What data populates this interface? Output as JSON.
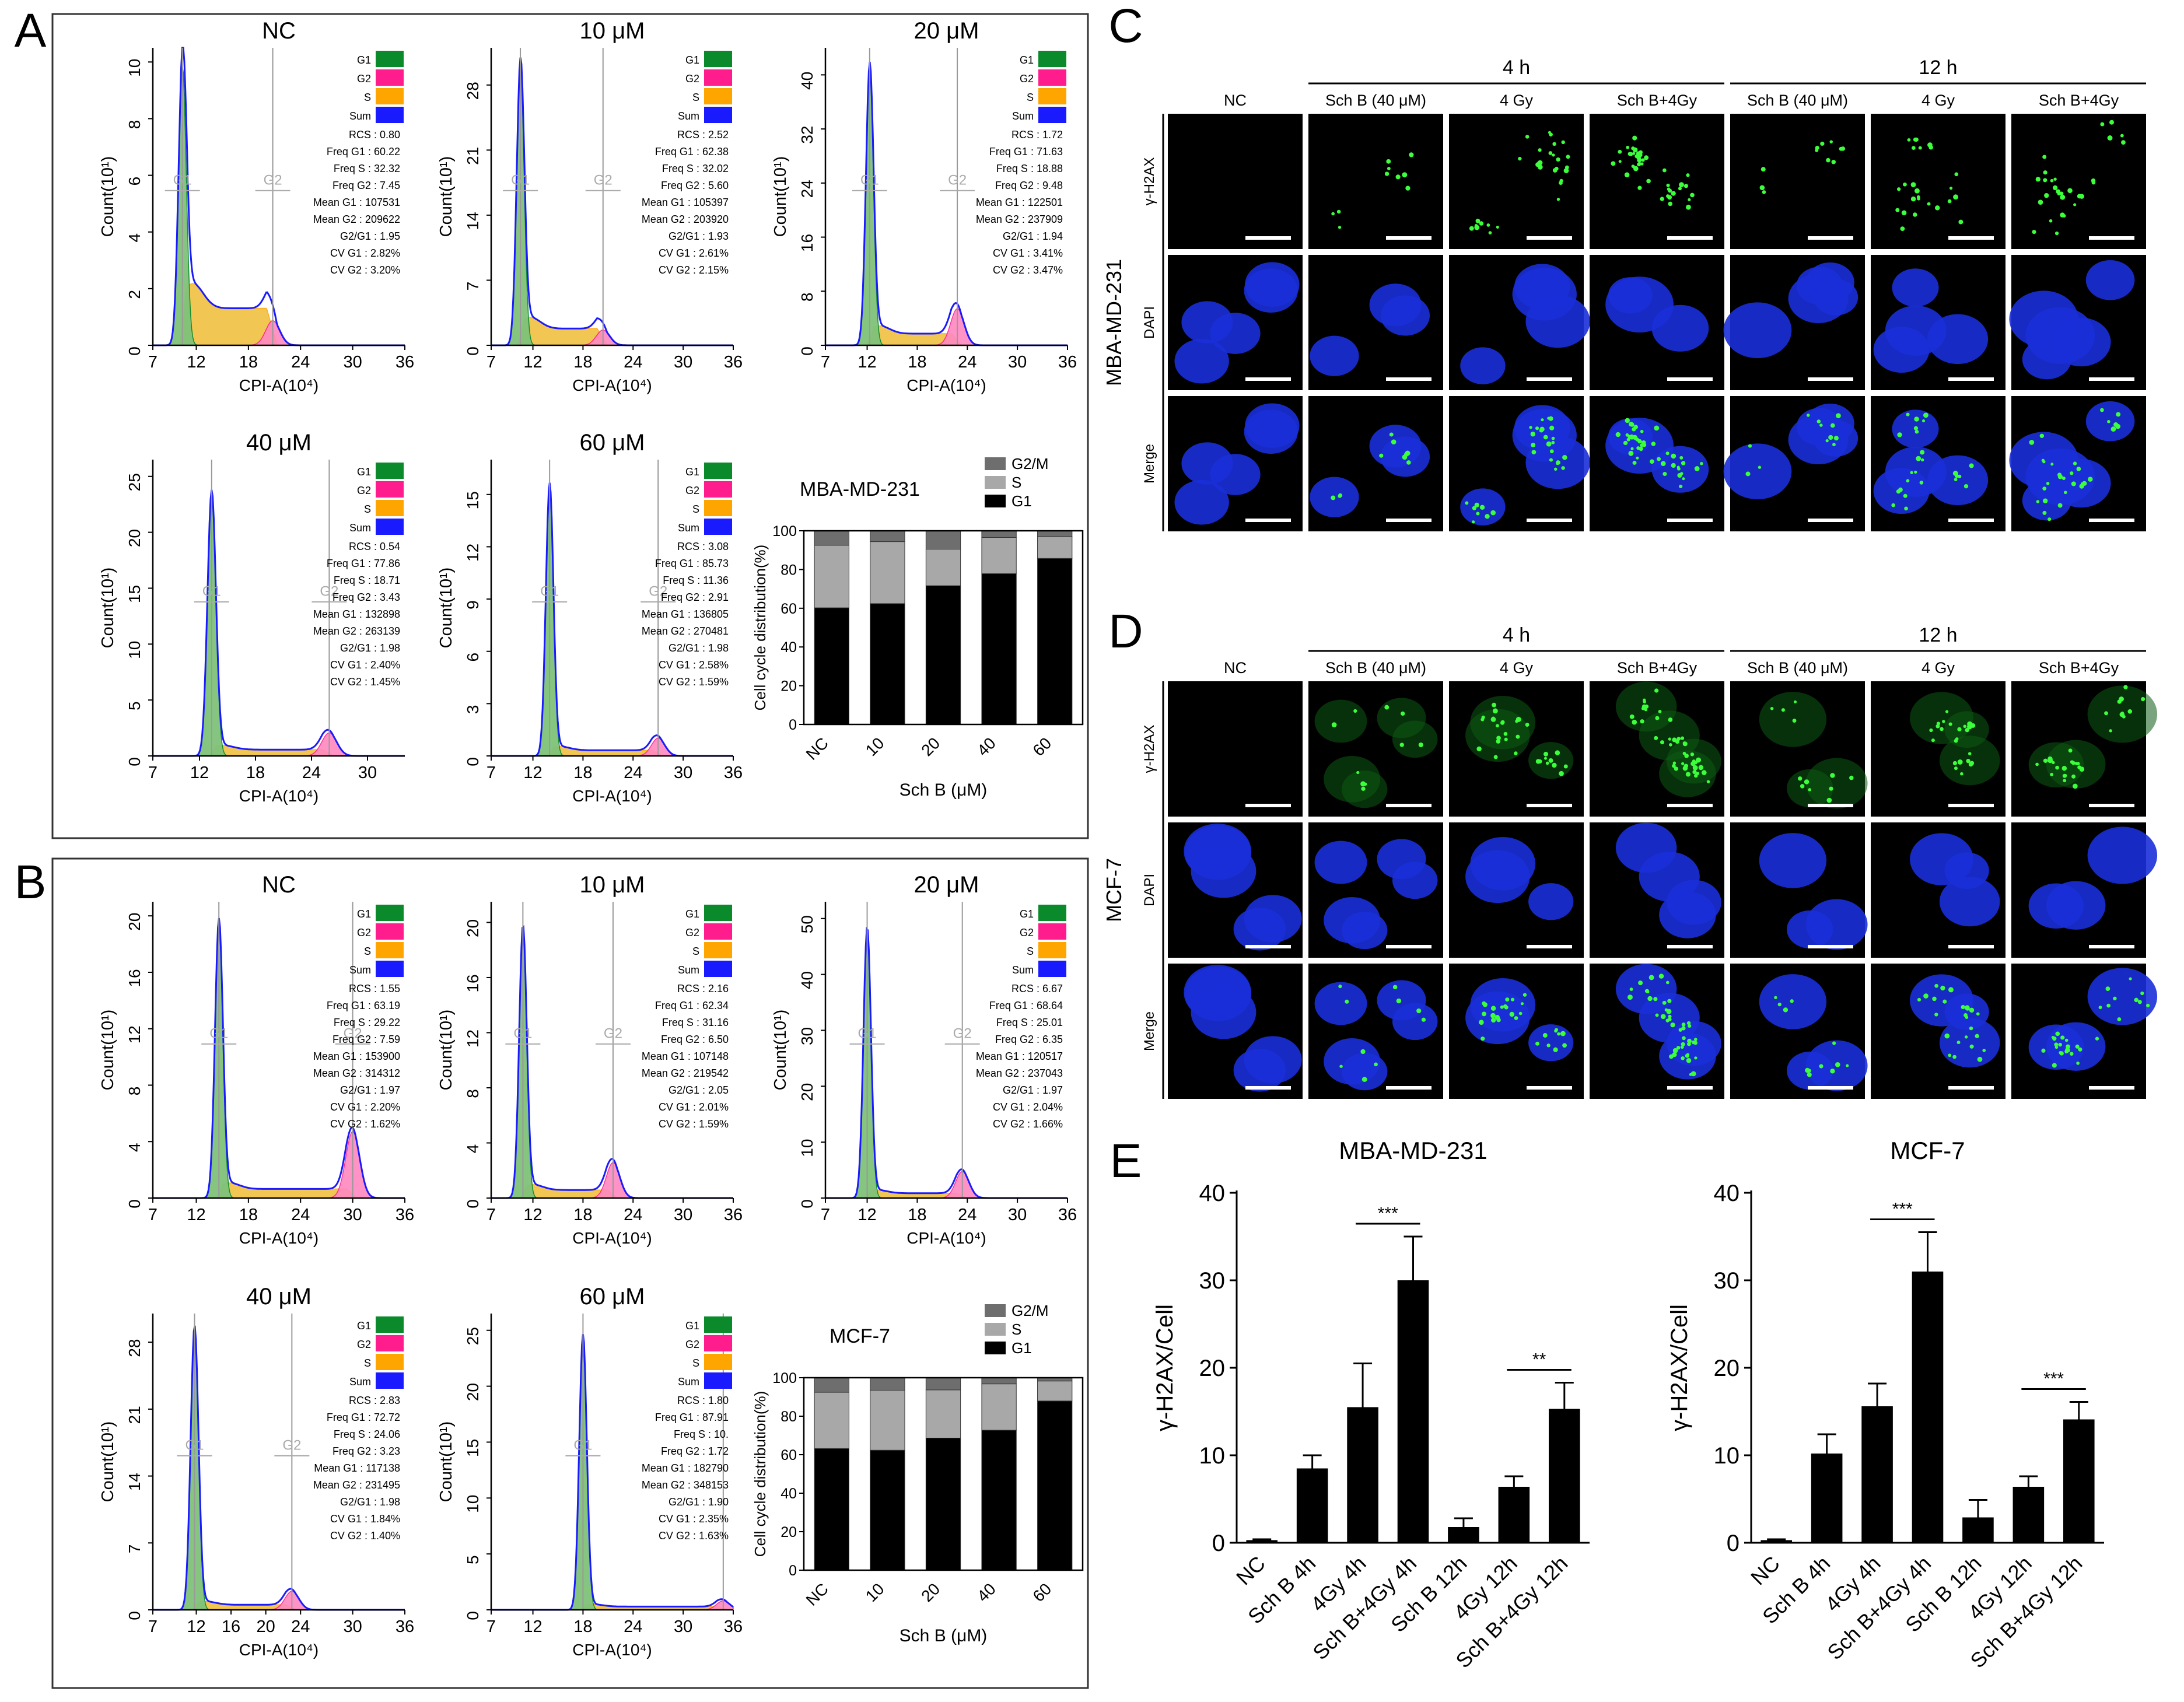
{
  "figure": {
    "panel_letters": [
      "A",
      "B",
      "C",
      "D",
      "E"
    ],
    "colors": {
      "G1": "#0a8a2a",
      "G2": "#ff1c8c",
      "S": "#ffa500",
      "Sum": "#1a1aff",
      "bar_G1": "#000000",
      "bar_S": "#a8a8a8",
      "bar_G2M": "#6e6e6e",
      "fill_G1": "#7fc27a",
      "fill_S": "#f0c040",
      "fill_G2": "#ff88c0"
    }
  },
  "panelA": {
    "cell_line": "MBA-MD-231",
    "histograms": [
      {
        "title": "NC",
        "yticks": [
          "0",
          "2",
          "4",
          "6",
          "8",
          "10"
        ],
        "xticks": [
          "7",
          "12",
          "18",
          "24",
          "30",
          "36"
        ],
        "ylabel": "Count(10¹)",
        "xlabel": "CPI-A(10⁴)",
        "gate_labels": [
          "G1",
          "G2"
        ],
        "legend": [
          "G1",
          "G2",
          "S",
          "Sum"
        ],
        "g1": 10.4,
        "g2": 20.8,
        "peak": 9.9,
        "s_frac": 0.22,
        "g2_frac": 0.04,
        "xmin": 7,
        "xmax": 36,
        "ymax": 10.5,
        "stats": [
          "RCS : 0.80",
          "Freq G1 : 60.22",
          "Freq S : 32.32",
          "Freq G2 : 7.45",
          "Mean G1 : 107531",
          "Mean G2 : 209622",
          "G2/G1 : 1.95",
          "CV G1 : 2.82%",
          "CV G2 : 3.20%"
        ]
      },
      {
        "title": "10 μM",
        "yticks": [
          "0",
          "7",
          "14",
          "21",
          "28"
        ],
        "xticks": [
          "7",
          "12",
          "18",
          "24",
          "30",
          "36"
        ],
        "ylabel": "Count(10¹)",
        "xlabel": "CPI-A(10⁴)",
        "gate_labels": [
          "G1",
          "G2"
        ],
        "legend": [
          "G1",
          "G2",
          "S",
          "Sum"
        ],
        "g1": 10.5,
        "g2": 20.4,
        "peak": 30,
        "s_frac": 0.1,
        "g2_frac": 0.025,
        "xmin": 7,
        "xmax": 36,
        "ymax": 32,
        "stats": [
          "RCS : 2.52",
          "Freq G1 : 62.38",
          "Freq S : 32.02",
          "Freq G2 : 5.60",
          "Mean G1 : 105397",
          "Mean G2 : 203920",
          "G2/G1 : 1.93",
          "CV G1 : 2.61%",
          "CV G2 : 2.15%"
        ]
      },
      {
        "title": "20 μM",
        "yticks": [
          "0",
          "8",
          "16",
          "24",
          "32",
          "40"
        ],
        "xticks": [
          "7",
          "12",
          "18",
          "24",
          "30",
          "36"
        ],
        "ylabel": "Count(10¹)",
        "xlabel": "CPI-A(10⁴)",
        "gate_labels": [
          "G1",
          "G2"
        ],
        "legend": [
          "G1",
          "G2",
          "S",
          "Sum"
        ],
        "g1": 12.3,
        "g2": 22.8,
        "peak": 41,
        "s_frac": 0.07,
        "g2_frac": 0.06,
        "xmin": 7,
        "xmax": 36,
        "ymax": 44,
        "stats": [
          "RCS : 1.72",
          "Freq G1 : 71.63",
          "Freq S : 18.88",
          "Freq G2 : 9.48",
          "Mean G1 : 122501",
          "Mean G2 : 237909",
          "G2/G1 : 1.94",
          "CV G1 : 3.41%",
          "CV G2 : 3.47%"
        ]
      },
      {
        "title": "40 μM",
        "yticks": [
          "0",
          "5",
          "10",
          "15",
          "20",
          "25"
        ],
        "xticks": [
          "7",
          "12",
          "18",
          "24",
          "30"
        ],
        "ylabel": "Count(10¹)",
        "xlabel": "CPI-A(10⁴)",
        "gate_labels": [
          "G1",
          "G2"
        ],
        "legend": [
          "G1",
          "G2",
          "S",
          "Sum"
        ],
        "g1": 13.3,
        "g2": 25.9,
        "peak": 23.5,
        "s_frac": 0.04,
        "g2_frac": 0.04,
        "xmin": 7,
        "xmax": 34,
        "ymax": 26.5,
        "stats": [
          "RCS : 0.54",
          "Freq G1 : 77.86",
          "Freq S : 18.71",
          "Freq G2 : 3.43",
          "Mean G1 : 132898",
          "Mean G2 : 263139",
          "G2/G1 : 1.98",
          "CV G1 : 2.40%",
          "CV G2 : 1.45%"
        ]
      },
      {
        "title": "60 μM",
        "yticks": [
          "0",
          "3",
          "6",
          "9",
          "12",
          "15"
        ],
        "xticks": [
          "7",
          "12",
          "18",
          "24",
          "30",
          "36"
        ],
        "ylabel": "Count(10¹)",
        "xlabel": "CPI-A(10⁴)",
        "gate_labels": [
          "G1",
          "G2"
        ],
        "legend": [
          "G1",
          "G2",
          "S",
          "Sum"
        ],
        "g1": 14.0,
        "g2": 27.0,
        "peak": 15.5,
        "s_frac": 0.035,
        "g2_frac": 0.03,
        "xmin": 7,
        "xmax": 36,
        "ymax": 17,
        "stats": [
          "RCS : 3.08",
          "Freq G1 : 85.73",
          "Freq S : 11.36",
          "Freq G2 : 2.91",
          "Mean G1 : 136805",
          "Mean G2 : 270481",
          "G2/G1 : 1.98",
          "CV G1 : 2.58%",
          "CV G2 : 1.59%"
        ]
      }
    ]
  },
  "panelB": {
    "cell_line": "MCF-7",
    "histograms": [
      {
        "title": "NC",
        "yticks": [
          "0",
          "4",
          "8",
          "12",
          "16",
          "20"
        ],
        "xticks": [
          "7",
          "12",
          "18",
          "24",
          "30",
          "36"
        ],
        "ylabel": "Count(10¹)",
        "xlabel": "CPI-A(10⁴)",
        "gate_labels": [
          "G1",
          "G2"
        ],
        "legend": [
          "G1",
          "G2",
          "S",
          "Sum"
        ],
        "g1": 14.6,
        "g2": 30.0,
        "peak": 19.5,
        "s_frac": 0.055,
        "g2_frac": 0.11,
        "xmin": 7,
        "xmax": 36,
        "ymax": 21,
        "stats": [
          "RCS : 1.55",
          "Freq G1 : 63.19",
          "Freq S : 29.22",
          "Freq G2 : 7.59",
          "Mean G1 : 153900",
          "Mean G2 : 314312",
          "G2/G1 : 1.97",
          "CV G1 : 2.20%",
          "CV G2 : 1.62%"
        ]
      },
      {
        "title": "10 μM",
        "yticks": [
          "0",
          "4",
          "8",
          "12",
          "16",
          "20"
        ],
        "xticks": [
          "7",
          "12",
          "18",
          "24",
          "30",
          "36"
        ],
        "ylabel": "Count(10¹)",
        "xlabel": "CPI-A(10⁴)",
        "gate_labels": [
          "G1",
          "G2"
        ],
        "legend": [
          "G1",
          "G2",
          "S",
          "Sum"
        ],
        "g1": 10.8,
        "g2": 21.6,
        "peak": 19.5,
        "s_frac": 0.05,
        "g2_frac": 0.06,
        "xmin": 7,
        "xmax": 36,
        "ymax": 21.5,
        "stats": [
          "RCS : 2.16",
          "Freq G1 : 62.34",
          "Freq S : 31.16",
          "Freq G2 : 6.50",
          "Mean G1 : 107148",
          "Mean G2 : 219542",
          "G2/G1 : 2.05",
          "CV G1 : 2.01%",
          "CV G2 : 1.59%"
        ]
      },
      {
        "title": "20 μM",
        "yticks": [
          "0",
          "10",
          "20",
          "30",
          "40",
          "50"
        ],
        "xticks": [
          "7",
          "12",
          "18",
          "24",
          "30",
          "36"
        ],
        "ylabel": "Count(10¹)",
        "xlabel": "CPI-A(10⁴)",
        "gate_labels": [
          "G1",
          "G2"
        ],
        "legend": [
          "G1",
          "G2",
          "S",
          "Sum"
        ],
        "g1": 12.0,
        "g2": 23.4,
        "peak": 48,
        "s_frac": 0.03,
        "g2_frac": 0.045,
        "xmin": 7,
        "xmax": 36,
        "ymax": 53,
        "stats": [
          "RCS : 6.67",
          "Freq G1 : 68.64",
          "Freq S : 25.01",
          "Freq G2 : 6.35",
          "Mean G1 : 120517",
          "Mean G2 : 237043",
          "G2/G1 : 1.97",
          "CV G1 : 2.04%",
          "CV G2 : 1.66%"
        ]
      },
      {
        "title": "40 μM",
        "yticks": [
          "0",
          "7",
          "14",
          "21",
          "28"
        ],
        "xticks": [
          "7",
          "12",
          "16",
          "20",
          "24",
          "30",
          "36"
        ],
        "ylabel": "Count(10¹)",
        "xlabel": "CPI-A(10⁴)",
        "gate_labels": [
          "G1",
          "G2"
        ],
        "legend": [
          "G1",
          "G2",
          "S",
          "Sum"
        ],
        "g1": 11.8,
        "g2": 23.0,
        "peak": 29.5,
        "s_frac": 0.03,
        "g2_frac": 0.03,
        "xmin": 7,
        "xmax": 36,
        "ymax": 31,
        "stats": [
          "RCS : 2.83",
          "Freq G1 : 72.72",
          "Freq S : 24.06",
          "Freq G2 : 3.23",
          "Mean G1 : 117138",
          "Mean G2 : 231495",
          "G2/G1 : 1.98",
          "CV G1 : 1.84%",
          "CV G2 : 1.40%"
        ]
      },
      {
        "title": "60 μM",
        "yticks": [
          "0",
          "5",
          "10",
          "15",
          "20",
          "25"
        ],
        "xticks": [
          "7",
          "12",
          "18",
          "24",
          "30",
          "36"
        ],
        "ylabel": "Count(10¹)",
        "xlabel": "CPI-A(10⁴)",
        "gate_labels": [
          "G1"
        ],
        "legend": [
          "G1",
          "G2",
          "S",
          "Sum"
        ],
        "g1": 18.0,
        "g2": 34.8,
        "peak": 24.5,
        "s_frac": 0.02,
        "g2_frac": 0.015,
        "xmin": 7,
        "xmax": 36,
        "ymax": 26.5,
        "stats": [
          "RCS : 1.80",
          "Freq G1 : 87.91",
          "Freq S : 10.",
          "Freq G2 : 1.72",
          "Mean G1 : 182790",
          "Mean G2 : 348153",
          "G2/G1 : 1.90",
          "CV G1 : 2.35%",
          "CV G2 : 1.63%"
        ]
      }
    ]
  },
  "panelC": {
    "cell_line": "MBA-MD-231",
    "time_headers": [
      "4 h",
      "12 h"
    ],
    "columns": [
      "NC",
      "Sch B (40 μM)",
      "4 Gy",
      "Sch B+4Gy",
      "Sch B (40 μM)",
      "4 Gy",
      "Sch B+4Gy"
    ],
    "rows": [
      "γ-H2AX",
      "DAPI",
      "Merge"
    ]
  },
  "panelD": {
    "cell_line": "MCF-7",
    "time_headers": [
      "4 h",
      "12 h"
    ],
    "columns": [
      "NC",
      "Sch B (40 μM)",
      "4 Gy",
      "Sch B+4Gy",
      "Sch B (40 μM)",
      "4 Gy",
      "Sch B+4Gy"
    ],
    "rows": [
      "γ-H2AX",
      "DAPI",
      "Merge"
    ]
  },
  "chart_data": [
    {
      "type": "bar",
      "stacked": true,
      "title": "MBA-MD-231",
      "panel": "A",
      "categories": [
        "NC",
        "10",
        "20",
        "40",
        "60"
      ],
      "series": [
        {
          "name": "G1",
          "values": [
            60.22,
            62.38,
            71.63,
            77.86,
            85.73
          ]
        },
        {
          "name": "S",
          "values": [
            32.32,
            32.02,
            18.88,
            18.71,
            11.36
          ]
        },
        {
          "name": "G2/M",
          "values": [
            7.45,
            5.6,
            9.48,
            3.43,
            2.91
          ]
        }
      ],
      "xlabel": "Sch B (μM)",
      "ylabel": "Cell cycle distribution(%)",
      "ylim": [
        0,
        100
      ],
      "yticks": [
        "0",
        "20",
        "40",
        "60",
        "80",
        "100"
      ],
      "legend": [
        "G2/M",
        "S",
        "G1"
      ]
    },
    {
      "type": "bar",
      "stacked": true,
      "title": "MCF-7",
      "panel": "B",
      "categories": [
        "NC",
        "10",
        "20",
        "40",
        "60"
      ],
      "series": [
        {
          "name": "G1",
          "values": [
            63.19,
            62.34,
            68.64,
            72.72,
            87.91
          ]
        },
        {
          "name": "S",
          "values": [
            29.22,
            31.16,
            25.01,
            24.06,
            10.37
          ]
        },
        {
          "name": "G2/M",
          "values": [
            7.59,
            6.5,
            6.35,
            3.23,
            1.72
          ]
        }
      ],
      "xlabel": "Sch B (μM)",
      "ylabel": "Cell cycle distribution(%)",
      "ylim": [
        0,
        100
      ],
      "yticks": [
        "0",
        "20",
        "40",
        "60",
        "80",
        "100"
      ],
      "legend": [
        "G2/M",
        "S",
        "G1"
      ]
    },
    {
      "type": "bar",
      "title": "MBA-MD-231",
      "panel": "E",
      "categories": [
        "NC",
        "Sch B 4h",
        "4Gy 4h",
        "Sch B+4Gy 4h",
        "Sch B 12h",
        "4Gy 12h",
        "Sch B+4Gy 12h"
      ],
      "values": [
        0.3,
        8.5,
        15.5,
        30,
        1.8,
        6.4,
        15.3
      ],
      "errors": [
        0.1,
        1.5,
        5.0,
        5.0,
        1.0,
        1.2,
        3.0
      ],
      "ylabel": "γ-H2AX/Cell",
      "ylim": [
        0,
        40
      ],
      "yticks": [
        "0",
        "10",
        "20",
        "30",
        "40"
      ],
      "significance": [
        {
          "from": 2,
          "to": 3,
          "label": "***"
        },
        {
          "from": 5,
          "to": 6,
          "label": "**"
        }
      ]
    },
    {
      "type": "bar",
      "title": "MCF-7",
      "panel": "E",
      "categories": [
        "NC",
        "Sch B 4h",
        "4Gy 4h",
        "Sch B+4Gy 4h",
        "Sch B 12h",
        "4Gy 12h",
        "Sch B+4Gy 12h"
      ],
      "values": [
        0.3,
        10.2,
        15.6,
        31,
        2.9,
        6.4,
        14.1
      ],
      "errors": [
        0.1,
        2.2,
        2.6,
        4.5,
        2.0,
        1.2,
        2.0
      ],
      "ylabel": "γ-H2AX/Cell",
      "ylim": [
        0,
        40
      ],
      "yticks": [
        "0",
        "10",
        "20",
        "30",
        "40"
      ],
      "significance": [
        {
          "from": 2,
          "to": 3,
          "label": "***"
        },
        {
          "from": 5,
          "to": 6,
          "label": "***"
        }
      ]
    }
  ]
}
